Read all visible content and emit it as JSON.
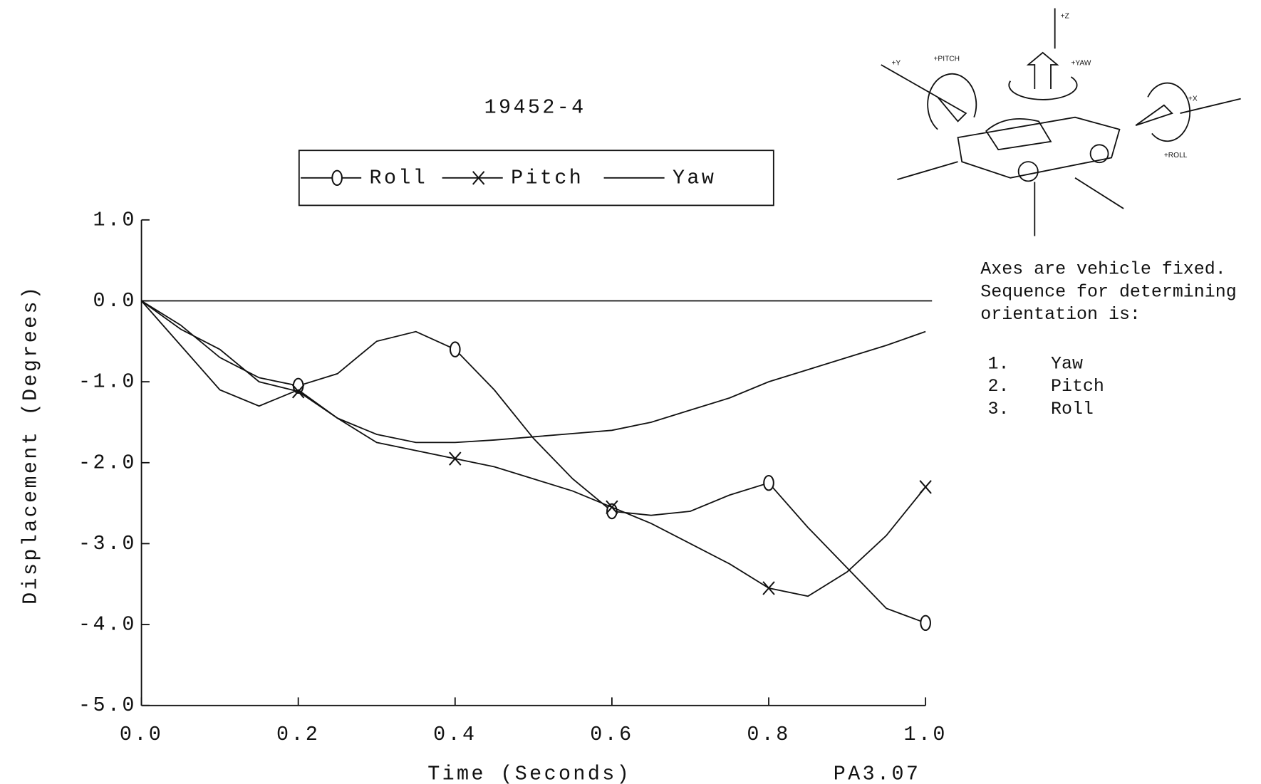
{
  "chart_data": {
    "type": "line",
    "title": "19452-4",
    "x_label": "Time  (Seconds)",
    "y_label": "Displacement  (Degrees)",
    "annotation": "PA3.07",
    "x": [
      0,
      0.05,
      0.1,
      0.15,
      0.2,
      0.25,
      0.3,
      0.35,
      0.4,
      0.45,
      0.5,
      0.55,
      0.6,
      0.65,
      0.7,
      0.75,
      0.8,
      0.85,
      0.9,
      0.95,
      1.0
    ],
    "series": [
      {
        "name": "Roll",
        "marker": "o",
        "color": "#111111",
        "values": [
          0,
          -0.3,
          -0.7,
          -0.95,
          -1.05,
          -0.9,
          -0.5,
          -0.38,
          -0.6,
          -1.1,
          -1.7,
          -2.2,
          -2.6,
          -2.65,
          -2.6,
          -2.4,
          -2.25,
          -2.8,
          -3.3,
          -3.8,
          -3.98
        ]
      },
      {
        "name": "Pitch",
        "marker": "x",
        "color": "#111111",
        "values": [
          0,
          -0.35,
          -0.6,
          -1.0,
          -1.12,
          -1.45,
          -1.75,
          -1.85,
          -1.95,
          -2.05,
          -2.2,
          -2.35,
          -2.55,
          -2.75,
          -3.0,
          -3.25,
          -3.55,
          -3.65,
          -3.35,
          -2.9,
          -2.3
        ]
      },
      {
        "name": "Yaw",
        "marker": "none",
        "color": "#111111",
        "values": [
          0,
          -0.55,
          -1.1,
          -1.3,
          -1.1,
          -1.45,
          -1.65,
          -1.75,
          -1.75,
          -1.72,
          -1.68,
          -1.64,
          -1.6,
          -1.5,
          -1.35,
          -1.2,
          -1.0,
          -0.85,
          -0.7,
          -0.55,
          -0.38
        ]
      }
    ],
    "marker_step": 0.2,
    "xlim": [
      0,
      1.0
    ],
    "xticks": [
      {
        "value": 0,
        "label": "0.0"
      },
      {
        "value": 0.2,
        "label": "0.2"
      },
      {
        "value": 0.4,
        "label": "0.4"
      },
      {
        "value": 0.6,
        "label": "0.6"
      },
      {
        "value": 0.8,
        "label": "0.8"
      },
      {
        "value": 1.0,
        "label": "1.0"
      }
    ],
    "ylim": [
      -5,
      1
    ],
    "yticks": [
      {
        "value": 1,
        "label": "1.0"
      },
      {
        "value": 0,
        "label": "0.0"
      },
      {
        "value": -1,
        "label": "-1.0"
      },
      {
        "value": -2,
        "label": "-2.0"
      },
      {
        "value": -3,
        "label": "-3.0"
      },
      {
        "value": -4,
        "label": "-4.0"
      },
      {
        "value": -5,
        "label": "-5.0"
      }
    ],
    "zero_line": true
  },
  "note": {
    "lines": [
      "Axes are vehicle fixed.",
      "Sequence for determining",
      "orientation is:"
    ],
    "sequence": [
      {
        "number": "1.",
        "label": "Yaw"
      },
      {
        "number": "2.",
        "label": "Pitch"
      },
      {
        "number": "3.",
        "label": "Roll"
      }
    ]
  },
  "diagram": {
    "labels": {
      "z": "+Z",
      "y": "+Y",
      "pitch": "+PITCH",
      "yaw": "+YAW",
      "x": "+X",
      "roll": "+ROLL"
    }
  }
}
